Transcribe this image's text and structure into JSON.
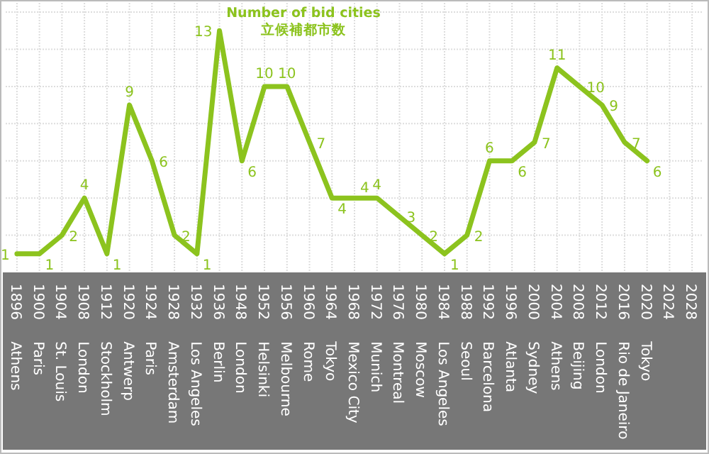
{
  "chart_data": {
    "type": "line",
    "title": "Number of bid cities",
    "subtitle": "立候補都市数",
    "categories": [
      "1896 Athens",
      "1900 Paris",
      "1904 St. Louis",
      "1908 London",
      "1912 Stockholm",
      "1920 Antwerp",
      "1924 Paris",
      "1928 Amsterdam",
      "1932 Los Angeles",
      "1936 Berlin",
      "1948 London",
      "1952 Helsinki",
      "1956 Melbourne",
      "1960 Rome",
      "1964 Tokyo",
      "1968 Mexico City",
      "1972 Munich",
      "1976 Montreal",
      "1980 Moscow",
      "1984 Los Angeles",
      "1988 Seoul",
      "1992 Barcelona",
      "1996 Atlanta",
      "2000 Sydney",
      "2004 Athens",
      "2008 Beijing",
      "2012 London",
      "2016 Rio de Janeiro",
      "2020 Tokyo",
      "2024",
      "2028"
    ],
    "series": [
      {
        "color": "#8cc31e",
        "values": [
          1,
          1,
          2,
          4,
          1,
          9,
          6,
          2,
          1,
          13,
          6,
          10,
          10,
          7,
          4,
          4,
          4,
          3,
          2,
          1,
          2,
          6,
          6,
          7,
          11,
          10,
          9,
          7,
          6,
          null,
          null
        ]
      }
    ],
    "ylim": [
      0,
      14.5
    ],
    "yticks": [
      {
        "value": 2,
        "label": null
      },
      {
        "value": 4,
        "label": null
      },
      {
        "value": 6,
        "label": null
      },
      {
        "value": 8,
        "label": null
      },
      {
        "value": 10,
        "label": null
      },
      {
        "value": 12,
        "label": null
      },
      {
        "value": 14,
        "label": null
      }
    ],
    "grid": true,
    "data_labels": true,
    "tick_labels": "x",
    "marker": "none",
    "line_style": "solid"
  }
}
